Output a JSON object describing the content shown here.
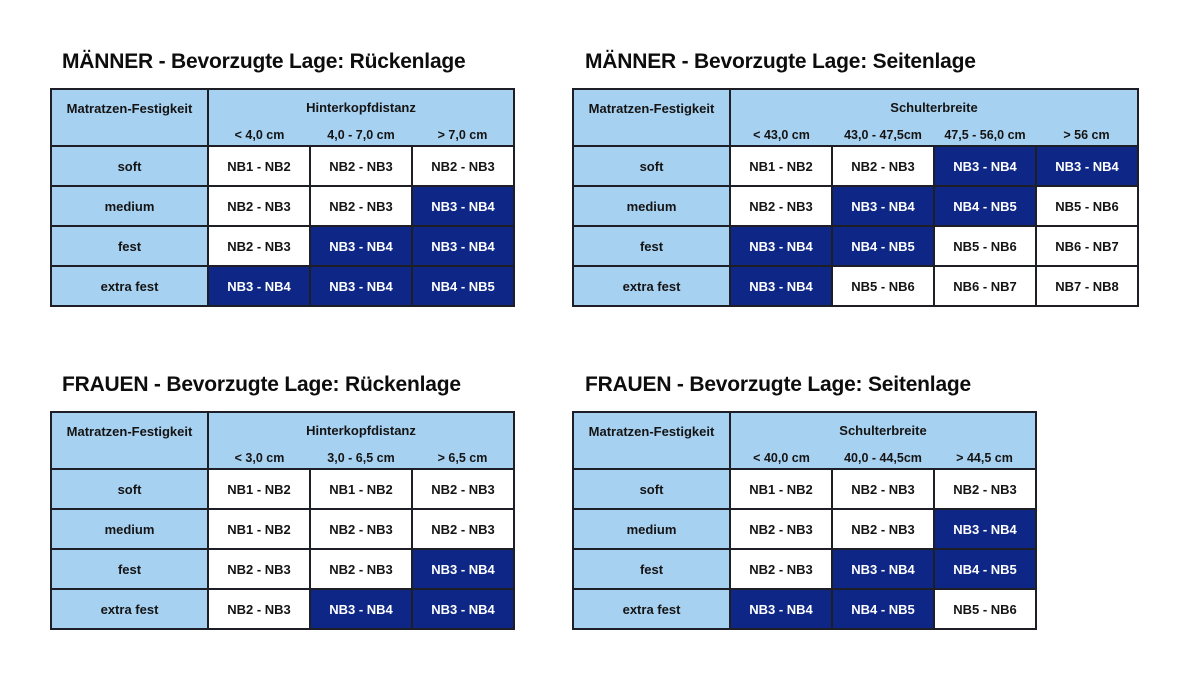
{
  "colors": {
    "background": "#ffffff",
    "title_text": "#0d0d0d",
    "cell_text": "#141414",
    "header_blue": "#a7d1f1",
    "highlight_navy": "#0e2786",
    "highlight_text": "#ffffff",
    "border": "#1d1e26"
  },
  "layout_hints": {
    "label_col_width": 157,
    "data_col_width": 102
  },
  "chart_data": [
    {
      "type": "table",
      "slug": "maenner-rueckenlage",
      "title": "MÄNNER - Bevorzugte Lage: Rückenlage",
      "row_header": "Matratzen-Festigkeit",
      "group_header": "Hinterkopfdistanz",
      "columns": [
        "< 4,0 cm",
        "4,0 - 7,0 cm",
        "> 7,0 cm"
      ],
      "rows": [
        {
          "label": "soft",
          "cells": [
            {
              "value": "NB1 - NB2",
              "highlight": false
            },
            {
              "value": "NB2 - NB3",
              "highlight": false
            },
            {
              "value": "NB2 - NB3",
              "highlight": false
            }
          ]
        },
        {
          "label": "medium",
          "cells": [
            {
              "value": "NB2 - NB3",
              "highlight": false
            },
            {
              "value": "NB2 - NB3",
              "highlight": false
            },
            {
              "value": "NB3 - NB4",
              "highlight": true
            }
          ]
        },
        {
          "label": "fest",
          "cells": [
            {
              "value": "NB2 - NB3",
              "highlight": false
            },
            {
              "value": "NB3 - NB4",
              "highlight": true
            },
            {
              "value": "NB3 - NB4",
              "highlight": true
            }
          ]
        },
        {
          "label": "extra fest",
          "cells": [
            {
              "value": "NB3 - NB4",
              "highlight": true
            },
            {
              "value": "NB3 - NB4",
              "highlight": true
            },
            {
              "value": "NB4 - NB5",
              "highlight": true
            }
          ]
        }
      ]
    },
    {
      "type": "table",
      "slug": "maenner-seitenlage",
      "title": "MÄNNER - Bevorzugte Lage: Seitenlage",
      "row_header": "Matratzen-Festigkeit",
      "group_header": "Schulterbreite",
      "columns": [
        "< 43,0 cm",
        "43,0 - 47,5cm",
        "47,5 - 56,0 cm",
        "> 56 cm"
      ],
      "rows": [
        {
          "label": "soft",
          "cells": [
            {
              "value": "NB1 - NB2",
              "highlight": false
            },
            {
              "value": "NB2 - NB3",
              "highlight": false
            },
            {
              "value": "NB3 - NB4",
              "highlight": true
            },
            {
              "value": "NB3 - NB4",
              "highlight": true
            }
          ]
        },
        {
          "label": "medium",
          "cells": [
            {
              "value": "NB2 - NB3",
              "highlight": false
            },
            {
              "value": "NB3 - NB4",
              "highlight": true
            },
            {
              "value": "NB4 - NB5",
              "highlight": true
            },
            {
              "value": "NB5 - NB6",
              "highlight": false
            }
          ]
        },
        {
          "label": "fest",
          "cells": [
            {
              "value": "NB3 - NB4",
              "highlight": true
            },
            {
              "value": "NB4 - NB5",
              "highlight": true
            },
            {
              "value": "NB5 - NB6",
              "highlight": false
            },
            {
              "value": "NB6 - NB7",
              "highlight": false
            }
          ]
        },
        {
          "label": "extra fest",
          "cells": [
            {
              "value": "NB3 - NB4",
              "highlight": true
            },
            {
              "value": "NB5 - NB6",
              "highlight": false
            },
            {
              "value": "NB6 - NB7",
              "highlight": false
            },
            {
              "value": "NB7 - NB8",
              "highlight": false
            }
          ]
        }
      ]
    },
    {
      "type": "table",
      "slug": "frauen-rueckenlage",
      "title": "FRAUEN - Bevorzugte Lage: Rückenlage",
      "row_header": "Matratzen-Festigkeit",
      "group_header": "Hinterkopfdistanz",
      "columns": [
        "< 3,0 cm",
        "3,0 - 6,5 cm",
        "> 6,5 cm"
      ],
      "rows": [
        {
          "label": "soft",
          "cells": [
            {
              "value": "NB1 - NB2",
              "highlight": false
            },
            {
              "value": "NB1 - NB2",
              "highlight": false
            },
            {
              "value": "NB2 - NB3",
              "highlight": false
            }
          ]
        },
        {
          "label": "medium",
          "cells": [
            {
              "value": "NB1 - NB2",
              "highlight": false
            },
            {
              "value": "NB2 - NB3",
              "highlight": false
            },
            {
              "value": "NB2 - NB3",
              "highlight": false
            }
          ]
        },
        {
          "label": "fest",
          "cells": [
            {
              "value": "NB2 - NB3",
              "highlight": false
            },
            {
              "value": "NB2 - NB3",
              "highlight": false
            },
            {
              "value": "NB3 - NB4",
              "highlight": true
            }
          ]
        },
        {
          "label": "extra fest",
          "cells": [
            {
              "value": "NB2 - NB3",
              "highlight": false
            },
            {
              "value": "NB3 - NB4",
              "highlight": true
            },
            {
              "value": "NB3 - NB4",
              "highlight": true
            }
          ]
        }
      ]
    },
    {
      "type": "table",
      "slug": "frauen-seitenlage",
      "title": "FRAUEN - Bevorzugte Lage: Seitenlage",
      "row_header": "Matratzen-Festigkeit",
      "group_header": "Schulterbreite",
      "columns": [
        "< 40,0 cm",
        "40,0 - 44,5cm",
        "> 44,5 cm"
      ],
      "rows": [
        {
          "label": "soft",
          "cells": [
            {
              "value": "NB1 - NB2",
              "highlight": false
            },
            {
              "value": "NB2 - NB3",
              "highlight": false
            },
            {
              "value": "NB2 - NB3",
              "highlight": false
            }
          ]
        },
        {
          "label": "medium",
          "cells": [
            {
              "value": "NB2 - NB3",
              "highlight": false
            },
            {
              "value": "NB2 - NB3",
              "highlight": false
            },
            {
              "value": "NB3 - NB4",
              "highlight": true
            }
          ]
        },
        {
          "label": "fest",
          "cells": [
            {
              "value": "NB2 - NB3",
              "highlight": false
            },
            {
              "value": "NB3 - NB4",
              "highlight": true
            },
            {
              "value": "NB4 - NB5",
              "highlight": true
            }
          ]
        },
        {
          "label": "extra fest",
          "cells": [
            {
              "value": "NB3 - NB4",
              "highlight": true
            },
            {
              "value": "NB4 - NB5",
              "highlight": true
            },
            {
              "value": "NB5 - NB6",
              "highlight": false
            }
          ]
        }
      ]
    }
  ]
}
